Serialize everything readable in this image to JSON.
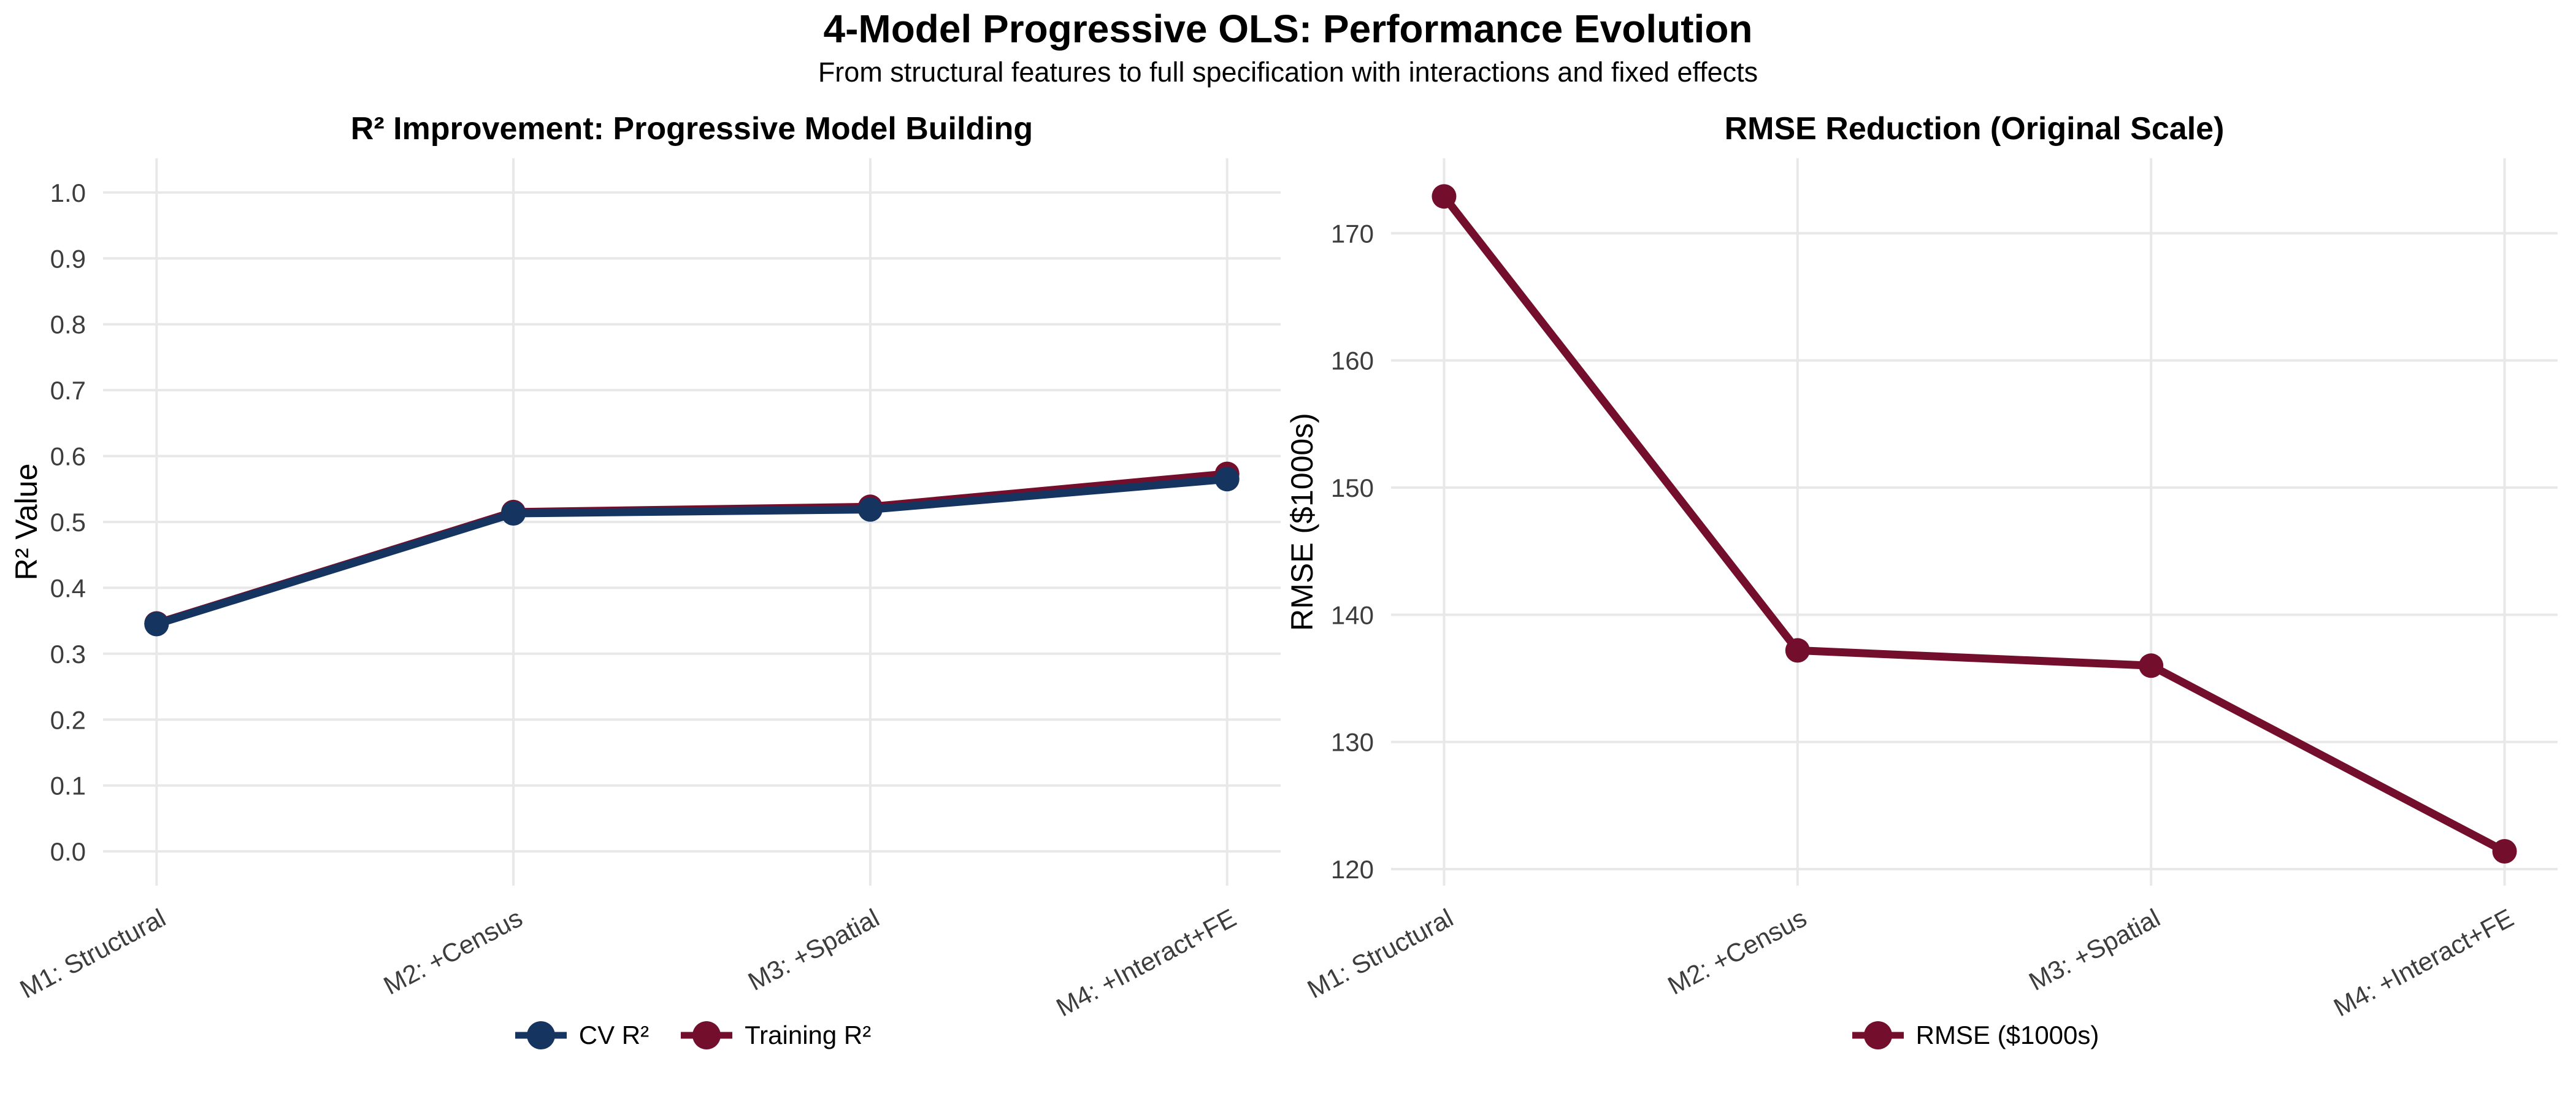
{
  "figure": {
    "title": "4-Model Progressive OLS: Performance Evolution",
    "subtitle": "From structural features to full specification with interactions and fixed effects",
    "background_color": "#ffffff",
    "grid_color": "#e8e8e8",
    "tick_label_color": "#3d3d3d",
    "accent_blue": "#15345f",
    "accent_maroon": "#740e2d"
  },
  "chart_data": [
    {
      "type": "line",
      "title": "R² Improvement: Progressive Model Building",
      "ylabel": "R² Value",
      "xlabel": "",
      "categories": [
        "M1: Structural",
        "M2: +Census",
        "M3: +Spatial",
        "M4: +Interact+FE"
      ],
      "series": [
        {
          "name": "CV R²",
          "color": "#15345f",
          "values": [
            0.345,
            0.513,
            0.519,
            0.565
          ]
        },
        {
          "name": "Training R²",
          "color": "#740e2d",
          "values": [
            0.346,
            0.515,
            0.523,
            0.573
          ]
        }
      ],
      "yticks": [
        0.0,
        0.1,
        0.2,
        0.3,
        0.4,
        0.5,
        0.6,
        0.7,
        0.8,
        0.9,
        1.0
      ],
      "ytick_labels": [
        "0.0",
        "0.1",
        "0.2",
        "0.3",
        "0.4",
        "0.5",
        "0.6",
        "0.7",
        "0.8",
        "0.9",
        "1.0"
      ],
      "ylim": [
        -0.052,
        1.052
      ],
      "xlim": [
        -0.15,
        3.15
      ],
      "grid": true,
      "legend_position": "bottom"
    },
    {
      "type": "line",
      "title": "RMSE Reduction (Original Scale)",
      "ylabel": "RMSE ($1000s)",
      "xlabel": "",
      "categories": [
        "M1: Structural",
        "M2: +Census",
        "M3: +Spatial",
        "M4: +Interact+FE"
      ],
      "series": [
        {
          "name": "RMSE ($1000s)",
          "color": "#740e2d",
          "values": [
            172.9,
            137.2,
            136.0,
            121.4
          ]
        }
      ],
      "yticks": [
        120,
        130,
        140,
        150,
        160,
        170
      ],
      "ytick_labels": [
        "120",
        "130",
        "140",
        "150",
        "160",
        "170"
      ],
      "ylim": [
        118.7,
        175.9
      ],
      "xlim": [
        -0.15,
        3.15
      ],
      "grid": true,
      "legend_position": "bottom"
    }
  ]
}
